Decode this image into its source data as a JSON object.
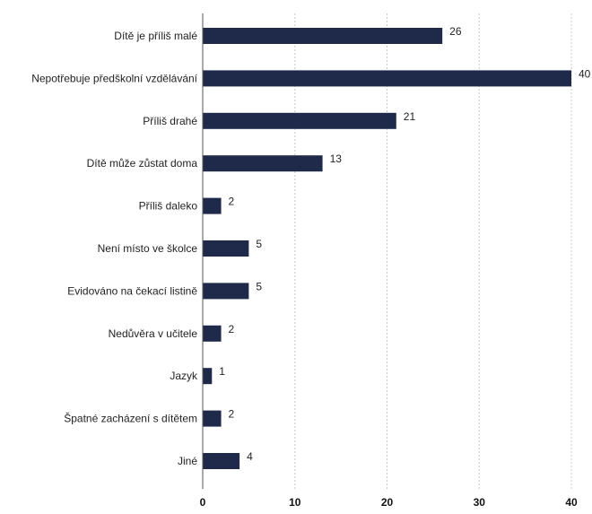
{
  "chart_data": {
    "type": "bar",
    "orientation": "horizontal",
    "categories": [
      "Dítě je příliš malé",
      "Nepotřebuje předškolní vzdělávání",
      "Příliš drahé",
      "Dítě může zůstat doma",
      "Příliš daleko",
      "Není místo ve školce",
      "Evidováno na čekací listině",
      "Nedůvěra v učitele",
      "Jazyk",
      "Špatné zacházení s dítětem",
      "Jiné"
    ],
    "values": [
      26,
      40,
      21,
      13,
      2,
      5,
      5,
      2,
      1,
      2,
      4
    ],
    "xlim": [
      0,
      40
    ],
    "xticks": [
      0,
      10,
      20,
      30,
      40
    ],
    "grid": "vertical dashed",
    "bar_color": "#1f2a4a",
    "data_labels": true
  }
}
